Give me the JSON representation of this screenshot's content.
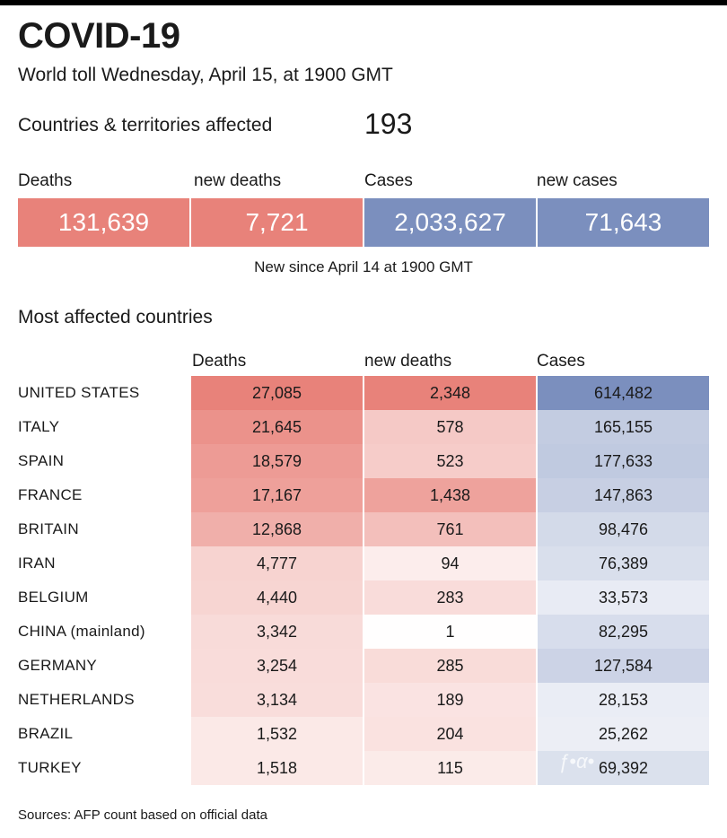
{
  "title": "COVID-19",
  "subtitle": "World toll Wednesday, April 15, at 1900 GMT",
  "affected": {
    "label": "Countries & territories affected",
    "value": "193"
  },
  "summary": {
    "deaths_label": "Deaths",
    "deaths_value": "131,639",
    "new_deaths_label": "new deaths",
    "new_deaths_value": "7,721",
    "cases_label": "Cases",
    "cases_value": "2,033,627",
    "new_cases_label": "new cases",
    "new_cases_value": "71,643"
  },
  "note": "New since  April 14 at 1900 GMT",
  "source": "Sources: AFP count based on official data",
  "colors": {
    "deaths": "#e8827a",
    "cases": "#7b8fbe"
  },
  "chart_data": {
    "type": "table",
    "title": "Most affected countries",
    "columns": [
      "Deaths",
      "new deaths",
      "Cases"
    ],
    "rows": [
      {
        "country": "UNITED STATES",
        "deaths": "27,085",
        "new_deaths": "2,348",
        "cases": "614,482"
      },
      {
        "country": "ITALY",
        "deaths": "21,645",
        "new_deaths": "578",
        "cases": "165,155"
      },
      {
        "country": "SPAIN",
        "deaths": "18,579",
        "new_deaths": "523",
        "cases": "177,633"
      },
      {
        "country": "FRANCE",
        "deaths": "17,167",
        "new_deaths": "1,438",
        "cases": "147,863"
      },
      {
        "country": "BRITAIN",
        "deaths": "12,868",
        "new_deaths": "761",
        "cases": "98,476"
      },
      {
        "country": "IRAN",
        "deaths": "4,777",
        "new_deaths": "94",
        "cases": "76,389"
      },
      {
        "country": "BELGIUM",
        "deaths": "4,440",
        "new_deaths": "283",
        "cases": "33,573"
      },
      {
        "country": "CHINA (mainland)",
        "deaths": "3,342",
        "new_deaths": "1",
        "cases": "82,295"
      },
      {
        "country": "GERMANY",
        "deaths": "3,254",
        "new_deaths": "285",
        "cases": "127,584"
      },
      {
        "country": "NETHERLANDS",
        "deaths": "3,134",
        "new_deaths": "189",
        "cases": "28,153"
      },
      {
        "country": "BRAZIL",
        "deaths": "1,532",
        "new_deaths": "204",
        "cases": "25,262"
      },
      {
        "country": "TURKEY",
        "deaths": "1,518",
        "new_deaths": "115",
        "cases": "69,392"
      }
    ]
  }
}
